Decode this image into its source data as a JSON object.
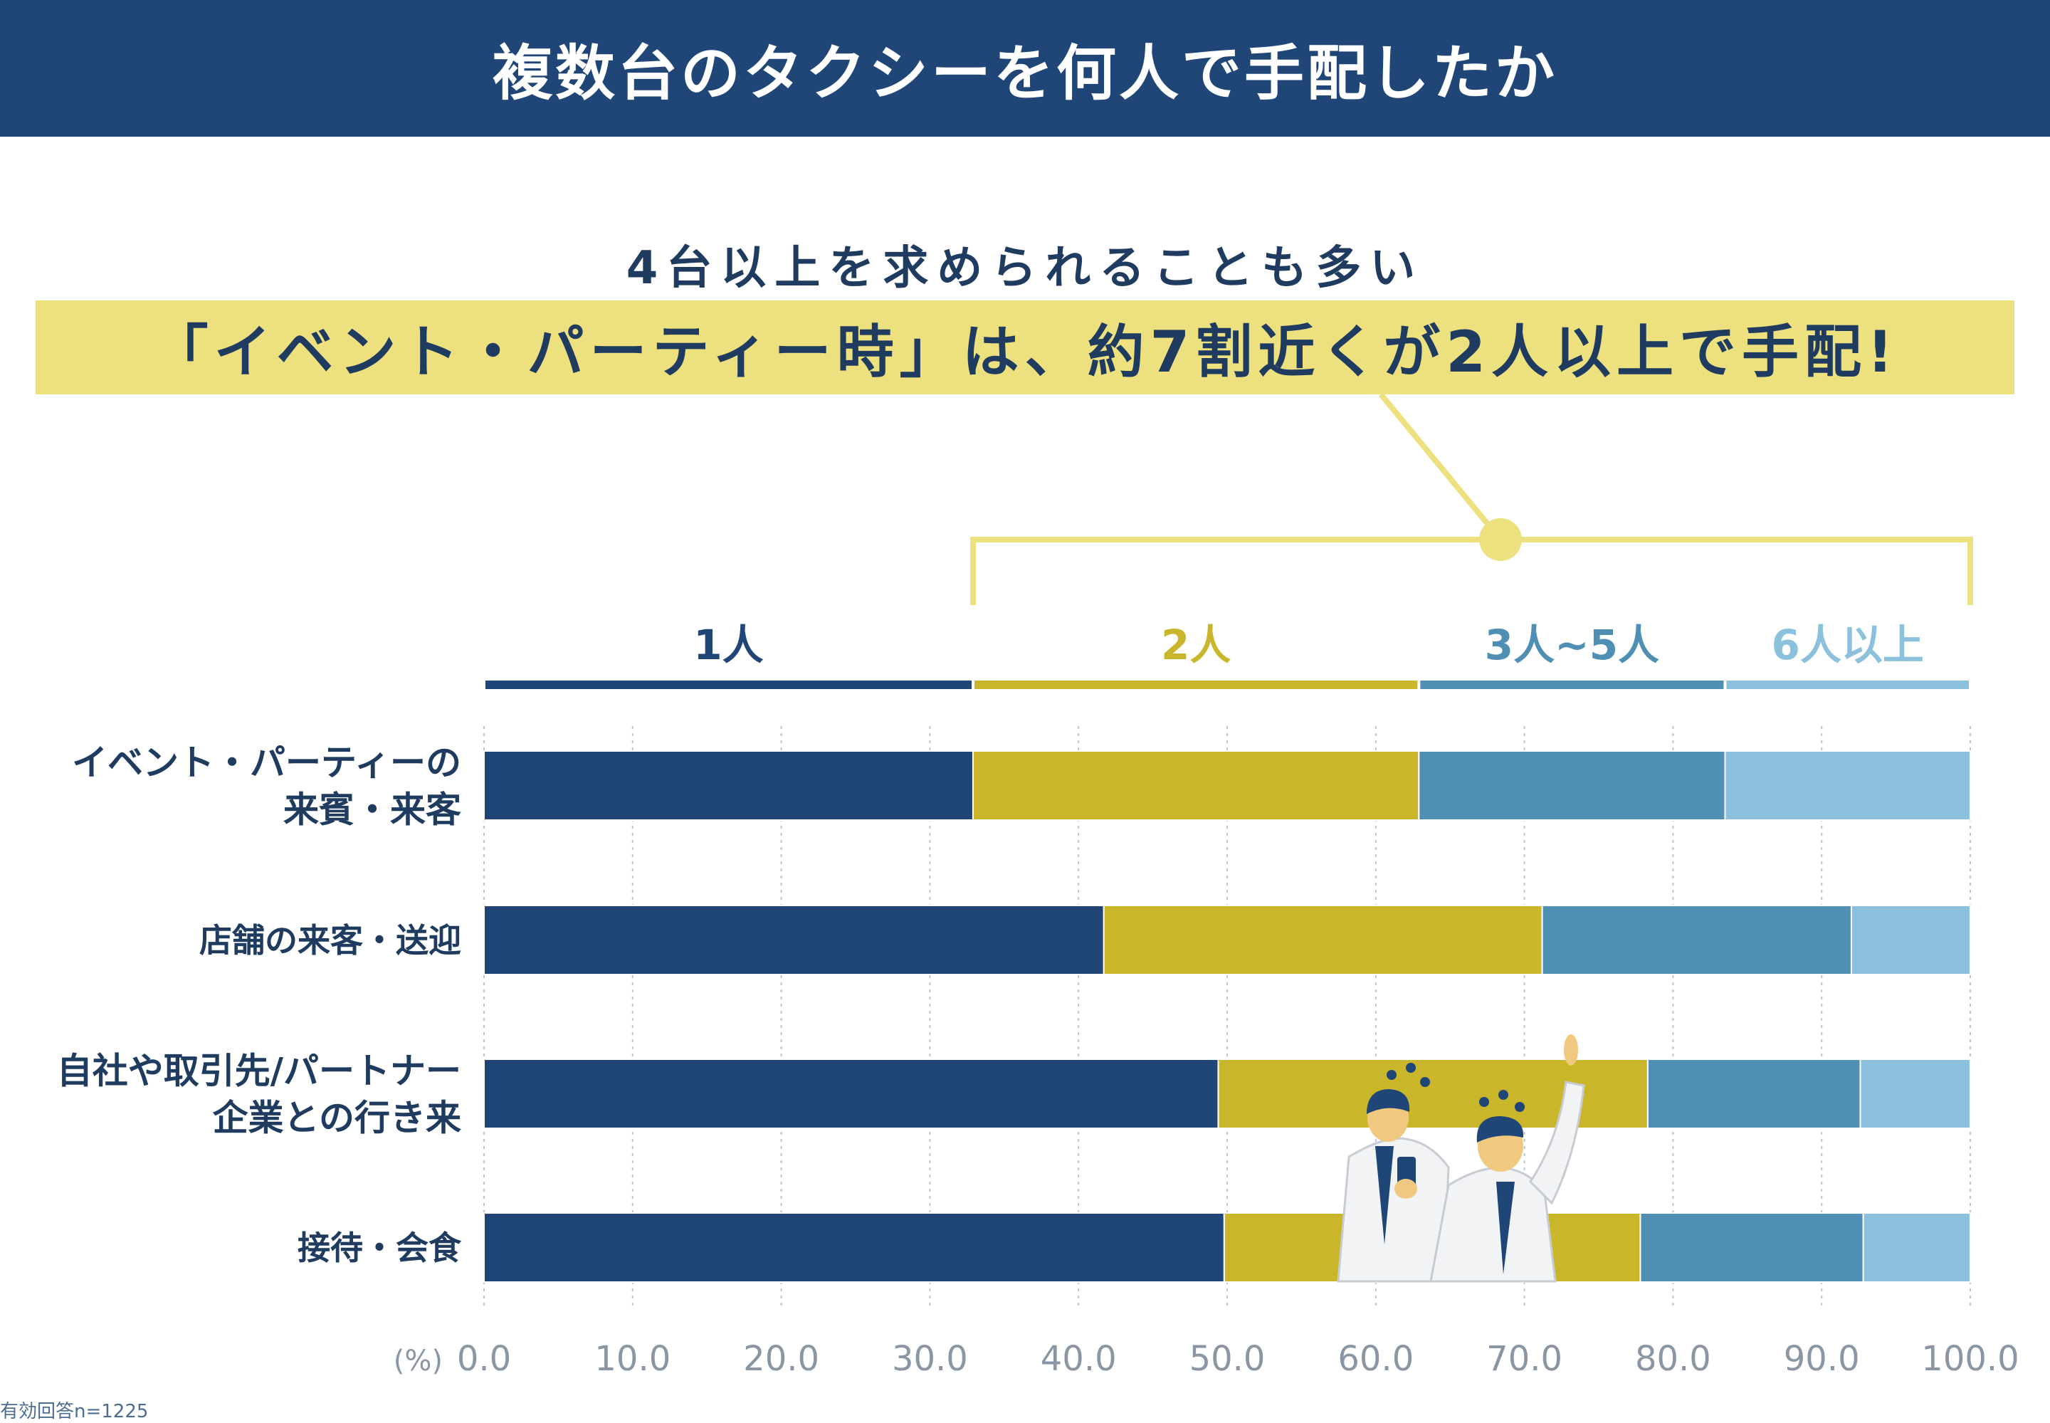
{
  "title": "複数台のタクシーを何人で手配したか",
  "subheading": "4台以上を求められることも多い",
  "headline": "「イベント・パーティー時」は、約7割近くが2人以上で手配!",
  "footnote": "有効回答n=1225",
  "colors": {
    "title_bg": "#1f4677",
    "highlight_bg": "#ede07e",
    "bracket": "#ede07e",
    "one": "#1f4677",
    "two": "#c9b62a",
    "three_five": "#4f8fb3",
    "six_plus": "#8bc1dc"
  },
  "chart_data": {
    "type": "bar",
    "orientation": "horizontal",
    "stacked": true,
    "categories": [
      "イベント・パーティーの\n来賓・来客",
      "店舗の来客・送迎",
      "自社や取引先/パートナー\n企業との行き来",
      "接待・会食"
    ],
    "series": [
      {
        "name": "1人",
        "color": "#1f4677",
        "values": [
          32.9,
          41.7,
          49.4,
          49.8
        ]
      },
      {
        "name": "2人",
        "color": "#c9b62a",
        "values": [
          30.0,
          29.5,
          28.9,
          28.0
        ]
      },
      {
        "name": "3人~5人",
        "color": "#4f8fb3",
        "values": [
          20.6,
          20.8,
          14.3,
          15.0
        ]
      },
      {
        "name": "6人以上",
        "color": "#8bc1dc",
        "values": [
          16.5,
          8.0,
          7.4,
          7.2
        ]
      }
    ],
    "xlim": [
      0,
      100
    ],
    "xticks": [
      "0.0",
      "10.0",
      "20.0",
      "30.0",
      "40.0",
      "50.0",
      "60.0",
      "70.0",
      "80.0",
      "90.0",
      "100.0"
    ],
    "unit_label": "(%)",
    "grid": "vertical-dotted",
    "legend": "top"
  }
}
